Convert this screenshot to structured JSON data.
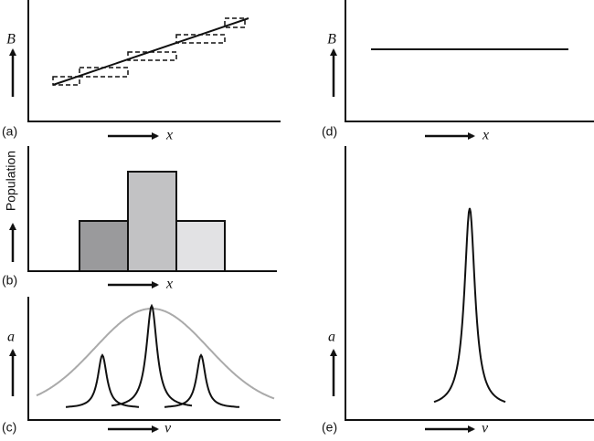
{
  "panels": {
    "a": {
      "label": "(a)",
      "y_label": "B",
      "x_label": "x"
    },
    "b": {
      "label": "(b)",
      "y_label": "Population",
      "x_label": "x"
    },
    "c": {
      "label": "(c)",
      "y_label": "a",
      "x_label": "ν"
    },
    "d": {
      "label": "(d)",
      "y_label": "B",
      "x_label": "x"
    },
    "e": {
      "label": "(e)",
      "y_label": "a",
      "x_label": "ν"
    }
  }
}
